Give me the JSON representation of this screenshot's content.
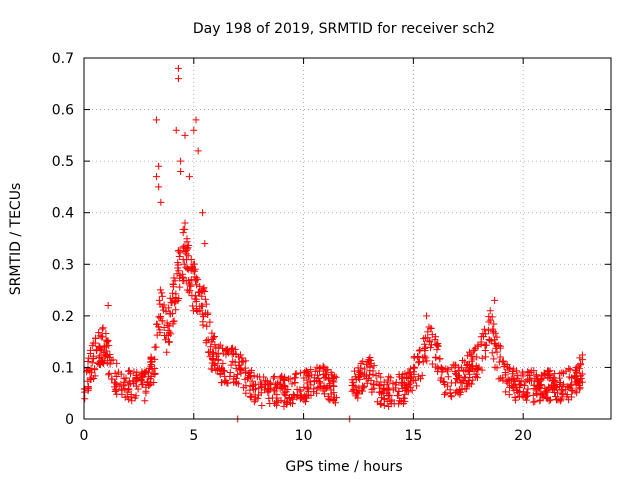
{
  "chart_data": {
    "type": "scatter",
    "title": "Day 198 of 2019, SRMTID for receiver sch2",
    "xlabel": "GPS time / hours",
    "ylabel": "SRMTID / TECUs",
    "xlim": [
      0,
      24
    ],
    "ylim": [
      0,
      0.7
    ],
    "xticks": [
      0,
      5,
      10,
      15,
      20
    ],
    "yticks": [
      0,
      0.1,
      0.2,
      0.3,
      0.4,
      0.5,
      0.6,
      0.7
    ],
    "grid": true,
    "marker": "+",
    "series": [
      {
        "name": "sch2",
        "color": "#ff0000",
        "profile": [
          [
            0.0,
            0.06
          ],
          [
            0.3,
            0.1
          ],
          [
            0.7,
            0.13
          ],
          [
            1.0,
            0.14
          ],
          [
            1.3,
            0.08
          ],
          [
            2.0,
            0.06
          ],
          [
            2.8,
            0.06
          ],
          [
            3.2,
            0.1
          ],
          [
            3.5,
            0.22
          ],
          [
            3.8,
            0.16
          ],
          [
            4.2,
            0.25
          ],
          [
            4.5,
            0.32
          ],
          [
            4.8,
            0.28
          ],
          [
            5.1,
            0.24
          ],
          [
            5.4,
            0.22
          ],
          [
            5.8,
            0.13
          ],
          [
            6.3,
            0.1
          ],
          [
            7.0,
            0.1
          ],
          [
            7.5,
            0.07
          ],
          [
            8.0,
            0.05
          ],
          [
            9.0,
            0.05
          ],
          [
            10.0,
            0.06
          ],
          [
            11.0,
            0.07
          ],
          [
            11.8,
            0.05
          ],
          [
            12.5,
            0.07
          ],
          [
            13.0,
            0.09
          ],
          [
            13.5,
            0.05
          ],
          [
            14.0,
            0.05
          ],
          [
            14.8,
            0.06
          ],
          [
            15.2,
            0.1
          ],
          [
            15.7,
            0.14
          ],
          [
            16.0,
            0.13
          ],
          [
            16.4,
            0.07
          ],
          [
            17.0,
            0.07
          ],
          [
            17.5,
            0.09
          ],
          [
            18.0,
            0.11
          ],
          [
            18.5,
            0.17
          ],
          [
            18.8,
            0.12
          ],
          [
            19.3,
            0.07
          ],
          [
            20.0,
            0.06
          ],
          [
            21.0,
            0.06
          ],
          [
            22.0,
            0.06
          ],
          [
            22.7,
            0.09
          ]
        ],
        "spikes": [
          [
            4.3,
            0.68
          ],
          [
            4.3,
            0.66
          ],
          [
            3.3,
            0.58
          ],
          [
            5.1,
            0.58
          ],
          [
            4.2,
            0.56
          ],
          [
            4.6,
            0.55
          ],
          [
            5.0,
            0.56
          ],
          [
            5.2,
            0.52
          ],
          [
            4.4,
            0.5
          ],
          [
            3.4,
            0.49
          ],
          [
            4.4,
            0.48
          ],
          [
            3.4,
            0.45
          ],
          [
            3.3,
            0.47
          ],
          [
            4.8,
            0.47
          ],
          [
            3.5,
            0.42
          ],
          [
            5.4,
            0.4
          ],
          [
            4.6,
            0.38
          ],
          [
            5.5,
            0.34
          ],
          [
            1.1,
            0.22
          ],
          [
            18.7,
            0.23
          ],
          [
            15.6,
            0.2
          ],
          [
            18.5,
            0.21
          ]
        ],
        "outliers": [
          [
            7.0,
            0.0
          ],
          [
            12.1,
            0.0
          ]
        ],
        "gap": [
          11.5,
          12.2
        ],
        "point_count": 1300,
        "noise": 0.025
      }
    ]
  }
}
